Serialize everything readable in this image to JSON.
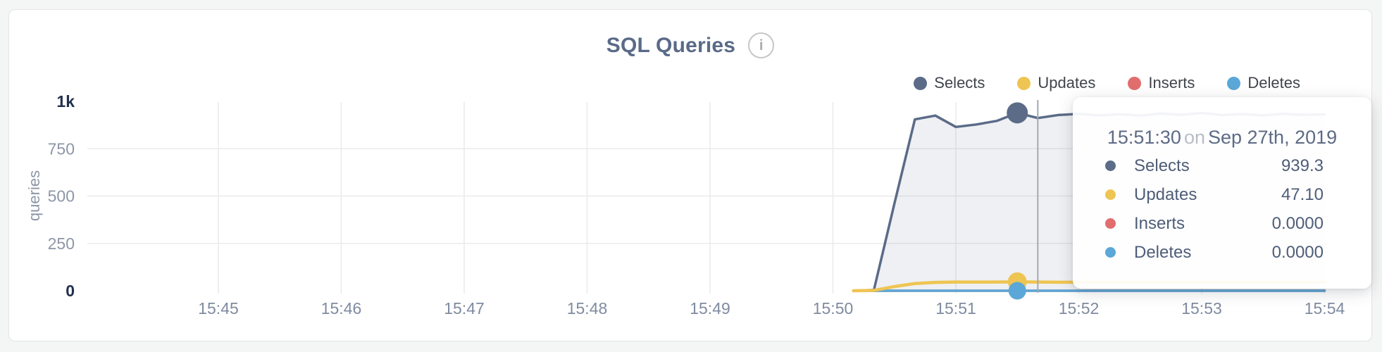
{
  "header": {
    "title": "SQL Queries",
    "info_icon_glyph": "i"
  },
  "legend": {
    "items": [
      {
        "label": "Selects",
        "color": "#5b6b88"
      },
      {
        "label": "Updates",
        "color": "#eec552"
      },
      {
        "label": "Inserts",
        "color": "#e26d6d"
      },
      {
        "label": "Deletes",
        "color": "#5ba7d7"
      }
    ]
  },
  "tooltip": {
    "time": "15:51:30",
    "on_word": "on",
    "date": "Sep 27th, 2019",
    "rows": [
      {
        "label": "Selects",
        "value": "939.3",
        "color": "#5b6b88"
      },
      {
        "label": "Updates",
        "value": "47.10",
        "color": "#eec552"
      },
      {
        "label": "Inserts",
        "value": "0.0000",
        "color": "#e26d6d"
      },
      {
        "label": "Deletes",
        "value": "0.0000",
        "color": "#5ba7d7"
      }
    ]
  },
  "chart_data": {
    "type": "area",
    "title": "SQL Queries",
    "xlabel": "",
    "ylabel": "queries",
    "ylim": [
      0,
      1000
    ],
    "xlim_seconds": [
      0,
      540
    ],
    "grid": true,
    "legend_position": "top-right",
    "x_ticks": [
      {
        "t": 0,
        "label": "15:45"
      },
      {
        "t": 60,
        "label": "15:46"
      },
      {
        "t": 120,
        "label": "15:47"
      },
      {
        "t": 180,
        "label": "15:48"
      },
      {
        "t": 240,
        "label": "15:49"
      },
      {
        "t": 300,
        "label": "15:50"
      },
      {
        "t": 360,
        "label": "15:51"
      },
      {
        "t": 420,
        "label": "15:52"
      },
      {
        "t": 480,
        "label": "15:53"
      },
      {
        "t": 540,
        "label": "15:54"
      }
    ],
    "y_ticks": [
      {
        "v": 0,
        "label": "0",
        "emphasis": true
      },
      {
        "v": 250,
        "label": "250",
        "emphasis": false
      },
      {
        "v": 500,
        "label": "500",
        "emphasis": false
      },
      {
        "v": 750,
        "label": "750",
        "emphasis": false
      },
      {
        "v": 1000,
        "label": "1k",
        "emphasis": true
      }
    ],
    "hover": {
      "t": 400
    },
    "highlight": {
      "t": 390,
      "time_label": "15:51:30"
    },
    "series": [
      {
        "name": "Selects",
        "color": "#5b6b88",
        "fill": "rgba(91,107,136,0.10)",
        "points": [
          [
            310,
            0
          ],
          [
            320,
            4
          ],
          [
            330,
            460
          ],
          [
            340,
            905
          ],
          [
            350,
            925
          ],
          [
            360,
            865
          ],
          [
            370,
            878
          ],
          [
            380,
            897
          ],
          [
            390,
            939.3
          ],
          [
            400,
            912
          ],
          [
            410,
            928
          ],
          [
            420,
            934
          ],
          [
            430,
            926
          ],
          [
            440,
            932
          ],
          [
            450,
            925
          ],
          [
            460,
            936
          ],
          [
            470,
            929
          ],
          [
            480,
            938
          ],
          [
            490,
            928
          ],
          [
            500,
            933
          ],
          [
            510,
            926
          ],
          [
            520,
            934
          ],
          [
            530,
            929
          ],
          [
            540,
            931
          ]
        ]
      },
      {
        "name": "Updates",
        "color": "#eec552",
        "points": [
          [
            310,
            0
          ],
          [
            320,
            2
          ],
          [
            330,
            22
          ],
          [
            340,
            38
          ],
          [
            350,
            44
          ],
          [
            360,
            46
          ],
          [
            370,
            46
          ],
          [
            380,
            46
          ],
          [
            390,
            47.1
          ],
          [
            400,
            46
          ],
          [
            410,
            45
          ],
          [
            420,
            45
          ],
          [
            430,
            45
          ],
          [
            440,
            45
          ],
          [
            450,
            45
          ],
          [
            460,
            45
          ],
          [
            470,
            45
          ],
          [
            480,
            45
          ],
          [
            490,
            45
          ],
          [
            500,
            45
          ],
          [
            510,
            45
          ],
          [
            520,
            45
          ],
          [
            530,
            45
          ],
          [
            540,
            45
          ]
        ]
      },
      {
        "name": "Inserts",
        "color": "#e26d6d",
        "points": [
          [
            310,
            0
          ],
          [
            540,
            0
          ]
        ]
      },
      {
        "name": "Deletes",
        "color": "#5ba7d7",
        "points": [
          [
            310,
            0
          ],
          [
            540,
            0
          ]
        ]
      }
    ]
  }
}
